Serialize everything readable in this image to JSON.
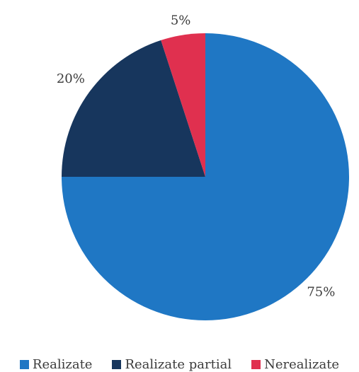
{
  "chart_data": {
    "type": "pie",
    "title": "",
    "categories": [
      "Realizate",
      "Realizate partial",
      "Nerealizate"
    ],
    "values": [
      75,
      20,
      5
    ],
    "data_labels": [
      "75%",
      "20%",
      "5%"
    ],
    "colors": [
      "#1f77c4",
      "#17365d",
      "#e0304f"
    ],
    "start_angle_deg": 0,
    "direction": "clockwise",
    "legend_position": "bottom"
  }
}
